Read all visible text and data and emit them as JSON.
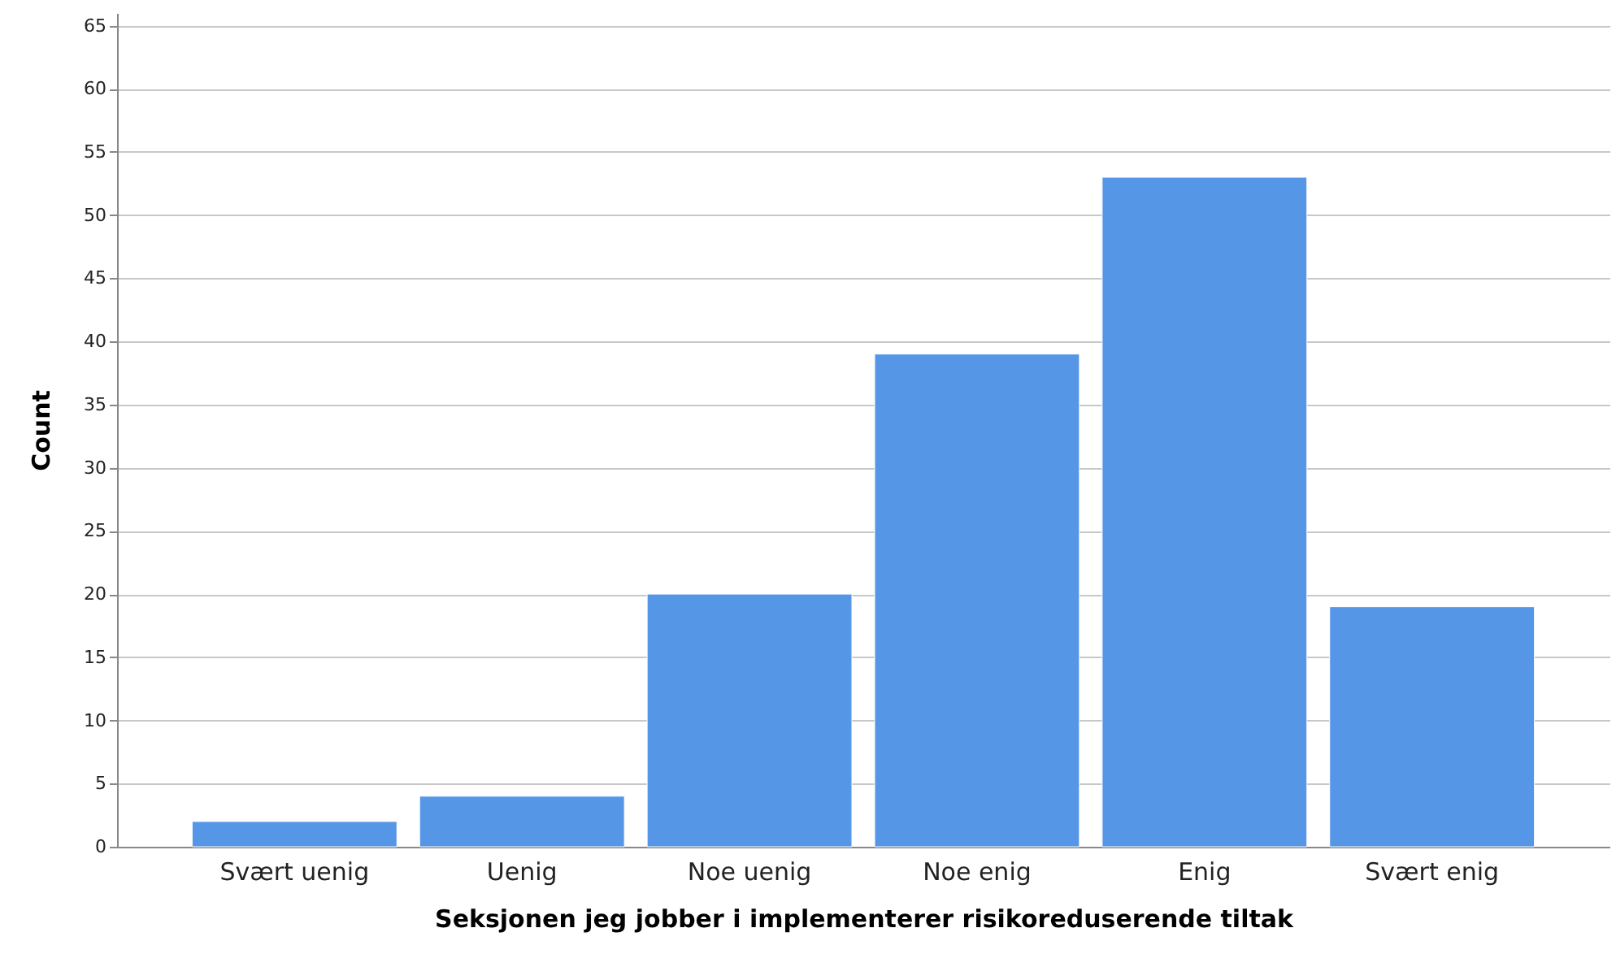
{
  "chart_data": {
    "type": "bar",
    "xlabel": "Seksjonen jeg jobber i implementerer risikoreduserende tiltak",
    "ylabel": "Count",
    "categories": [
      "Svært uenig",
      "Uenig",
      "Noe uenig",
      "Noe enig",
      "Enig",
      "Svært enig"
    ],
    "values": [
      2,
      4,
      20,
      39,
      53,
      19
    ],
    "color": "#5596e6",
    "ylim": [
      0,
      66
    ],
    "yticks": [
      0,
      5,
      10,
      15,
      20,
      25,
      30,
      35,
      40,
      45,
      50,
      55,
      60,
      65
    ],
    "grid": "y"
  }
}
